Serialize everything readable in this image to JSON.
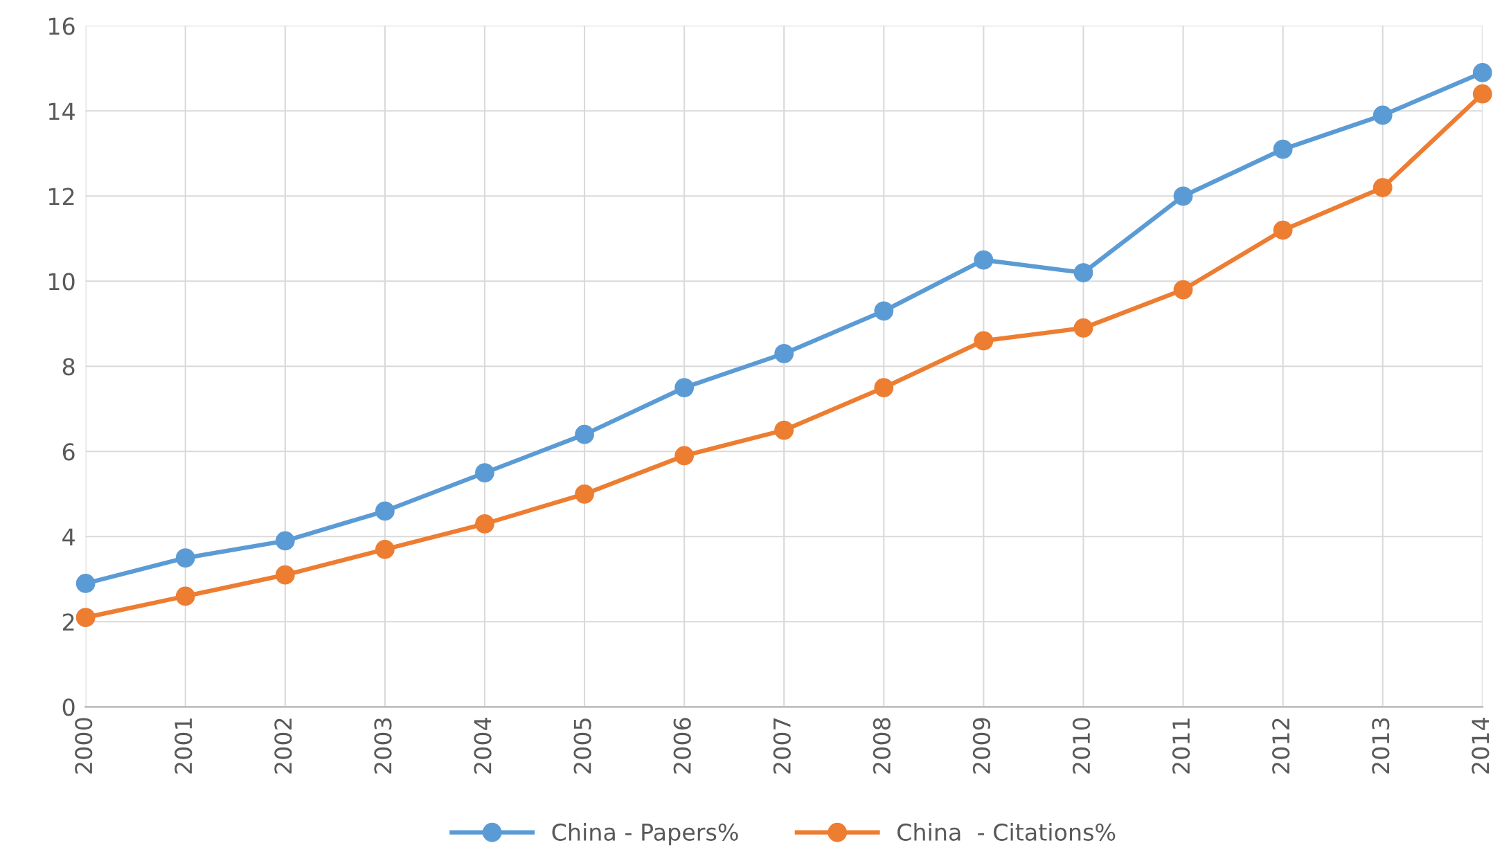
{
  "chart_data": {
    "type": "line",
    "categories": [
      "2000",
      "2001",
      "2002",
      "2003",
      "2004",
      "2005",
      "2006",
      "2007",
      "2008",
      "2009",
      "2010",
      "2011",
      "2012",
      "2013",
      "2014"
    ],
    "series": [
      {
        "name": "China - Papers%",
        "color": "#5b9bd5",
        "values": [
          2.9,
          3.5,
          3.9,
          4.6,
          5.5,
          6.4,
          7.5,
          8.3,
          9.3,
          10.5,
          10.2,
          12.0,
          13.1,
          13.9,
          14.9
        ]
      },
      {
        "name": "China  - Citations%",
        "color": "#ed7d31",
        "values": [
          2.1,
          2.6,
          3.1,
          3.7,
          4.3,
          5.0,
          5.9,
          6.5,
          7.5,
          8.6,
          8.9,
          9.8,
          11.2,
          12.2,
          14.4
        ]
      }
    ],
    "ylim": [
      0,
      16
    ],
    "yticks": [
      0,
      2,
      4,
      6,
      8,
      10,
      12,
      14,
      16
    ],
    "grid": true,
    "legend": "bottom",
    "marker": "circle",
    "line_style": "solid"
  }
}
